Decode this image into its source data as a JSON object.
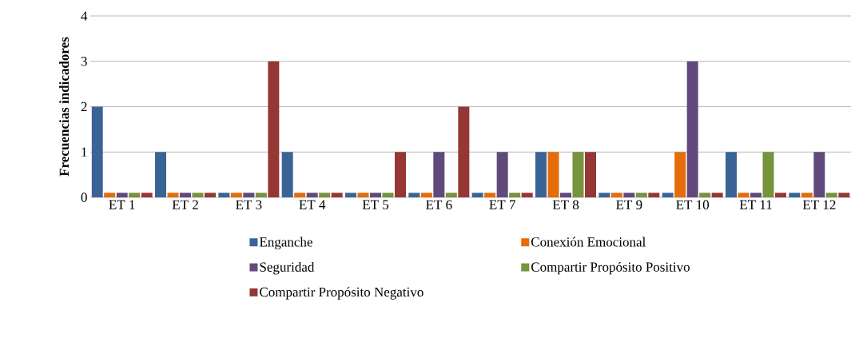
{
  "chart_data": {
    "type": "bar",
    "ylabel": "Frecuencias indicadores",
    "categories": [
      "ET 1",
      "ET 2",
      "ET 3",
      "ET 4",
      "ET 5",
      "ET 6",
      "ET 7",
      "ET 8",
      "ET 9",
      "ET 10",
      "ET 11",
      "ET 12"
    ],
    "series": [
      {
        "name": "Enganche",
        "color": "#3b6496",
        "values": [
          2,
          1,
          0.1,
          1,
          0.1,
          0.1,
          0.1,
          1,
          0.1,
          0.1,
          1,
          0.1
        ]
      },
      {
        "name": "Conexión Emocional",
        "color": "#e46c0a",
        "values": [
          0.1,
          0.1,
          0.1,
          0.1,
          0.1,
          0.1,
          0.1,
          1,
          0.1,
          1,
          0.1,
          0.1
        ]
      },
      {
        "name": "Seguridad",
        "color": "#604a7b",
        "values": [
          0.1,
          0.1,
          0.1,
          0.1,
          0.1,
          1,
          1,
          0.1,
          0.1,
          3,
          0.1,
          1
        ]
      },
      {
        "name": "Compartir Propósito Positivo",
        "color": "#77933c",
        "values": [
          0.1,
          0.1,
          0.1,
          0.1,
          0.1,
          0.1,
          0.1,
          1,
          0.1,
          0.1,
          1,
          0.1
        ]
      },
      {
        "name": "Compartir Propósito Negativo",
        "color": "#953735",
        "values": [
          0.1,
          0.1,
          3,
          0.1,
          1,
          2,
          0.1,
          1,
          0.1,
          0.1,
          0.1,
          0.1
        ]
      }
    ],
    "ylim": [
      0,
      4
    ],
    "yticks": [
      0,
      1,
      2,
      3,
      4
    ],
    "grid": "y",
    "legend": "bottom"
  }
}
